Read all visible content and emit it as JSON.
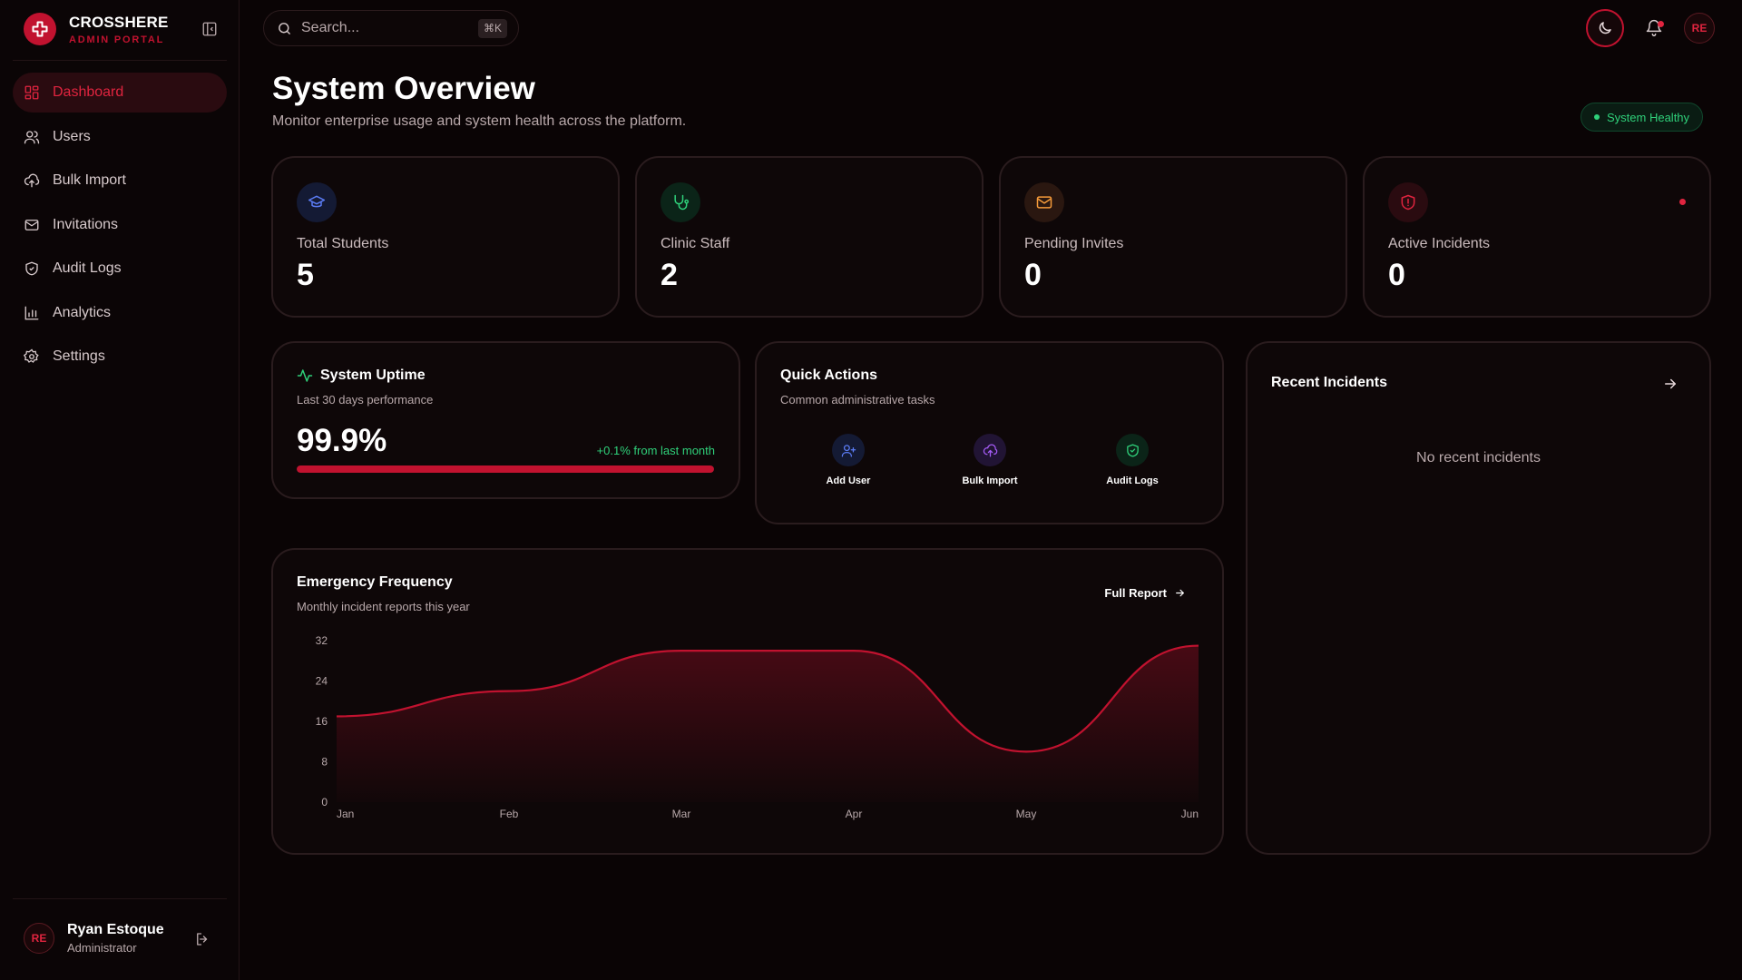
{
  "brand": {
    "name": "CROSSHERE",
    "subtitle": "ADMIN PORTAL"
  },
  "nav": [
    {
      "label": "Dashboard",
      "icon": "dashboard-icon",
      "active": true
    },
    {
      "label": "Users",
      "icon": "users-icon"
    },
    {
      "label": "Bulk Import",
      "icon": "upload-cloud-icon"
    },
    {
      "label": "Invitations",
      "icon": "mail-icon"
    },
    {
      "label": "Audit Logs",
      "icon": "shield-icon"
    },
    {
      "label": "Analytics",
      "icon": "bar-chart-icon"
    },
    {
      "label": "Settings",
      "icon": "gear-icon"
    }
  ],
  "user": {
    "initials": "RE",
    "name": "Ryan Estoque",
    "role": "Administrator"
  },
  "search": {
    "placeholder": "Search...",
    "shortcut": "⌘K"
  },
  "topbar": {
    "avatar_initials": "RE"
  },
  "header": {
    "title": "System Overview",
    "subtitle": "Monitor enterprise usage and system health across the platform.",
    "status": "System Healthy"
  },
  "stats": [
    {
      "label": "Total Students",
      "value": "5",
      "icon": "graduation-cap-icon",
      "color": "#5b7cf5"
    },
    {
      "label": "Clinic Staff",
      "value": "2",
      "icon": "stethoscope-icon",
      "color": "#2fd07a"
    },
    {
      "label": "Pending Invites",
      "value": "0",
      "icon": "mail-icon",
      "color": "#f59a3a"
    },
    {
      "label": "Active Incidents",
      "value": "0",
      "icon": "shield-alert-icon",
      "color": "#e0243f"
    }
  ],
  "uptime": {
    "title": "System Uptime",
    "subtitle": "Last 30 days performance",
    "value": "99.9%",
    "change": "+0.1% from last month",
    "progress": 0.999
  },
  "quick_actions": {
    "title": "Quick Actions",
    "subtitle": "Common administrative tasks",
    "items": [
      {
        "label": "Add User",
        "icon": "user-plus-icon",
        "color": "#5b7cf5"
      },
      {
        "label": "Bulk Import",
        "icon": "upload-cloud-icon",
        "color": "#a45bf5"
      },
      {
        "label": "Audit Logs",
        "icon": "shield-check-icon",
        "color": "#2fd07a"
      }
    ]
  },
  "recent_incidents": {
    "title": "Recent Incidents",
    "empty": "No recent incidents"
  },
  "emergency": {
    "title": "Emergency Frequency",
    "subtitle": "Monthly incident reports this year",
    "link": "Full Report"
  },
  "chart_data": {
    "type": "area",
    "categories": [
      "Jan",
      "Feb",
      "Mar",
      "Apr",
      "May",
      "Jun"
    ],
    "values": [
      17,
      22,
      30,
      30,
      10,
      31
    ],
    "yticks": [
      0,
      8,
      16,
      24,
      32
    ],
    "ylim": [
      0,
      32
    ],
    "color": "#c1122f",
    "grid": false
  }
}
